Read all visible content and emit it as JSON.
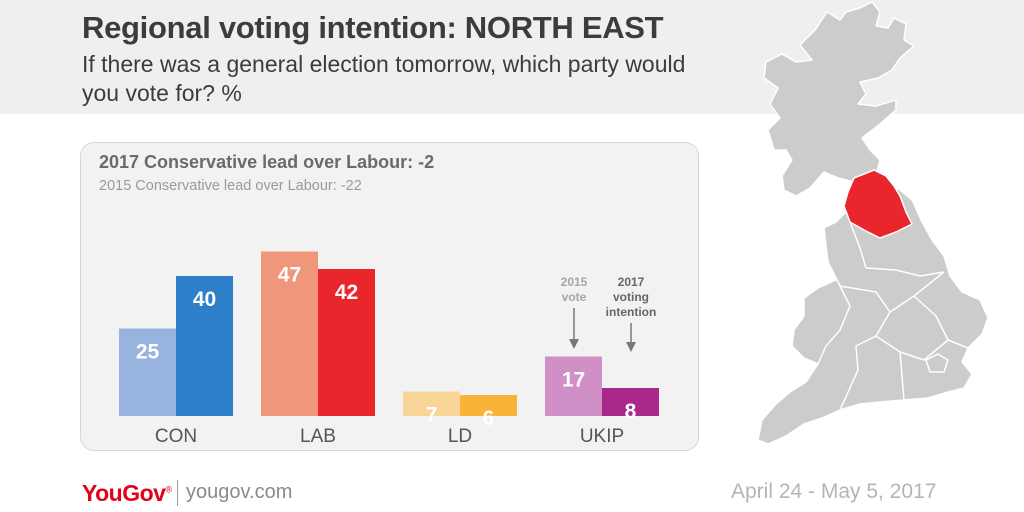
{
  "header": {
    "title": "Regional voting intention: NORTH EAST",
    "subtitle": "If there was a general election tomorrow, which party would you vote for? %"
  },
  "panel": {
    "lead_2017": "2017 Conservative lead over Labour: -2",
    "lead_2015": "2015 Conservative lead over Labour: -22"
  },
  "annotations": {
    "vote_2015_line1": "2015",
    "vote_2015_line2": "vote",
    "intention_2017_line1": "2017",
    "intention_2017_line2": "voting",
    "intention_2017_line3": "intention"
  },
  "chart_data": {
    "type": "bar",
    "categories": [
      "CON",
      "LAB",
      "LD",
      "UKIP"
    ],
    "series": [
      {
        "name": "2015 vote",
        "values": [
          25,
          47,
          7,
          17
        ],
        "colors": [
          "#97b3de",
          "#f0967a",
          "#f9d598",
          "#d08fc7"
        ]
      },
      {
        "name": "2017 voting intention",
        "values": [
          40,
          42,
          6,
          8
        ],
        "colors": [
          "#2d7fca",
          "#e8262b",
          "#f8b338",
          "#a8288b"
        ]
      }
    ],
    "ylim": [
      0,
      50
    ],
    "xlabel": "",
    "ylabel": ""
  },
  "map": {
    "highlight_region": "North East",
    "highlight_color": "#e8262b",
    "base_color": "#cccccc"
  },
  "footer": {
    "logo": "YouGov",
    "logo_mark": "®",
    "url": "yougov.com",
    "date": "April 24 - May 5, 2017"
  }
}
